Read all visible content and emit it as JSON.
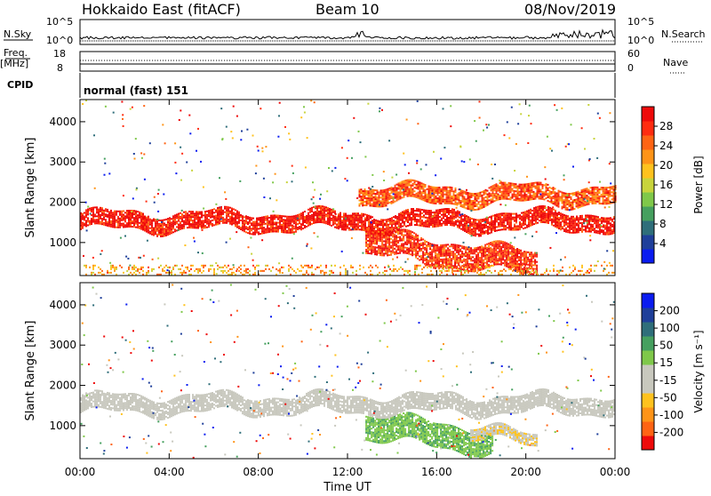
{
  "header": {
    "site": "Hokkaido East (fitACF)",
    "beam": "Beam 10",
    "date": "08/Nov/2019"
  },
  "top_panels": {
    "nsky_label": "N.Sky",
    "nsky_ticks": [
      "10^5",
      "10^0"
    ],
    "nsearch_label": "N.Search",
    "nsearch_ticks": [
      "10^5",
      "10^0"
    ],
    "freq_label": "Freq.",
    "freq_unit": "[MHz]",
    "freq_ticks": [
      "18",
      "8"
    ],
    "nave_label": "Nave",
    "nave_ticks": [
      "60",
      "0"
    ],
    "cpid_label": "CPID",
    "cpid_value": "normal (fast) 151"
  },
  "chart_data": [
    {
      "type": "heatmap",
      "title": "",
      "xlabel": "",
      "ylabel": "Slant Range [km]",
      "x_ticks": [
        "00:00",
        "04:00",
        "08:00",
        "12:00",
        "16:00",
        "20:00",
        "00:00"
      ],
      "y_ticks": [
        1000,
        2000,
        3000,
        4000
      ],
      "xlim_hours": [
        0,
        24
      ],
      "ylim": [
        180,
        4550
      ],
      "colorbar": {
        "label": "Power [dB]",
        "ticks": [
          4,
          8,
          12,
          16,
          20,
          24,
          28
        ],
        "range": [
          0,
          30
        ],
        "colors": [
          "#0a1cf0",
          "#1f3f9a",
          "#2f6e7a",
          "#46a05f",
          "#7fc84a",
          "#c8d43c",
          "#ffc21e",
          "#ff9418",
          "#ff6414",
          "#ff2c10",
          "#ee0a0a"
        ]
      },
      "features": [
        {
          "name": "main band",
          "from": 0,
          "to": 24,
          "range_km": [
            1350,
            1750
          ],
          "value_db": 28
        },
        {
          "name": "upper band",
          "from": 12.5,
          "to": 24,
          "range_km": [
            2000,
            2400
          ],
          "value_db": 24
        },
        {
          "name": "sloping echoes",
          "from": 12.8,
          "to": 20.5,
          "range_km": [
            500,
            1100
          ],
          "value_db": 26
        },
        {
          "name": "near-range clutter",
          "from": 0,
          "to": 24,
          "range_km": [
            200,
            450
          ],
          "value_db": 20
        }
      ]
    },
    {
      "type": "heatmap",
      "title": "",
      "xlabel": "Time UT",
      "ylabel": "Slant Range [km]",
      "x_ticks": [
        "00:00",
        "04:00",
        "08:00",
        "12:00",
        "16:00",
        "20:00",
        "00:00"
      ],
      "y_ticks": [
        1000,
        2000,
        3000,
        4000
      ],
      "xlim_hours": [
        0,
        24
      ],
      "ylim": [
        180,
        4550
      ],
      "colorbar": {
        "label": "Velocity [m s⁻¹]",
        "ticks": [
          "200",
          "100",
          "50",
          "15",
          "-15",
          "-50",
          "-100",
          "-200"
        ],
        "range": [
          -250,
          250
        ],
        "colors": [
          "#ee0a0a",
          "#ff6414",
          "#ff9418",
          "#ffc21e",
          "#c8c8be",
          "#c8c8be",
          "#7fc84a",
          "#46a05f",
          "#2f6e7a",
          "#1f3f9a",
          "#0a1cf0"
        ]
      },
      "features": [
        {
          "name": "ground scatter band",
          "from": 0,
          "to": 24,
          "range_km": [
            1350,
            1750
          ],
          "value_ms": 0
        },
        {
          "name": "positive velocity echoes",
          "from": 12.8,
          "to": 18.5,
          "range_km": [
            500,
            1100
          ],
          "value_ms": 60
        },
        {
          "name": "negative velocity echoes",
          "from": 17.5,
          "to": 20.5,
          "range_km": [
            500,
            800
          ],
          "value_ms": -60
        }
      ]
    }
  ]
}
